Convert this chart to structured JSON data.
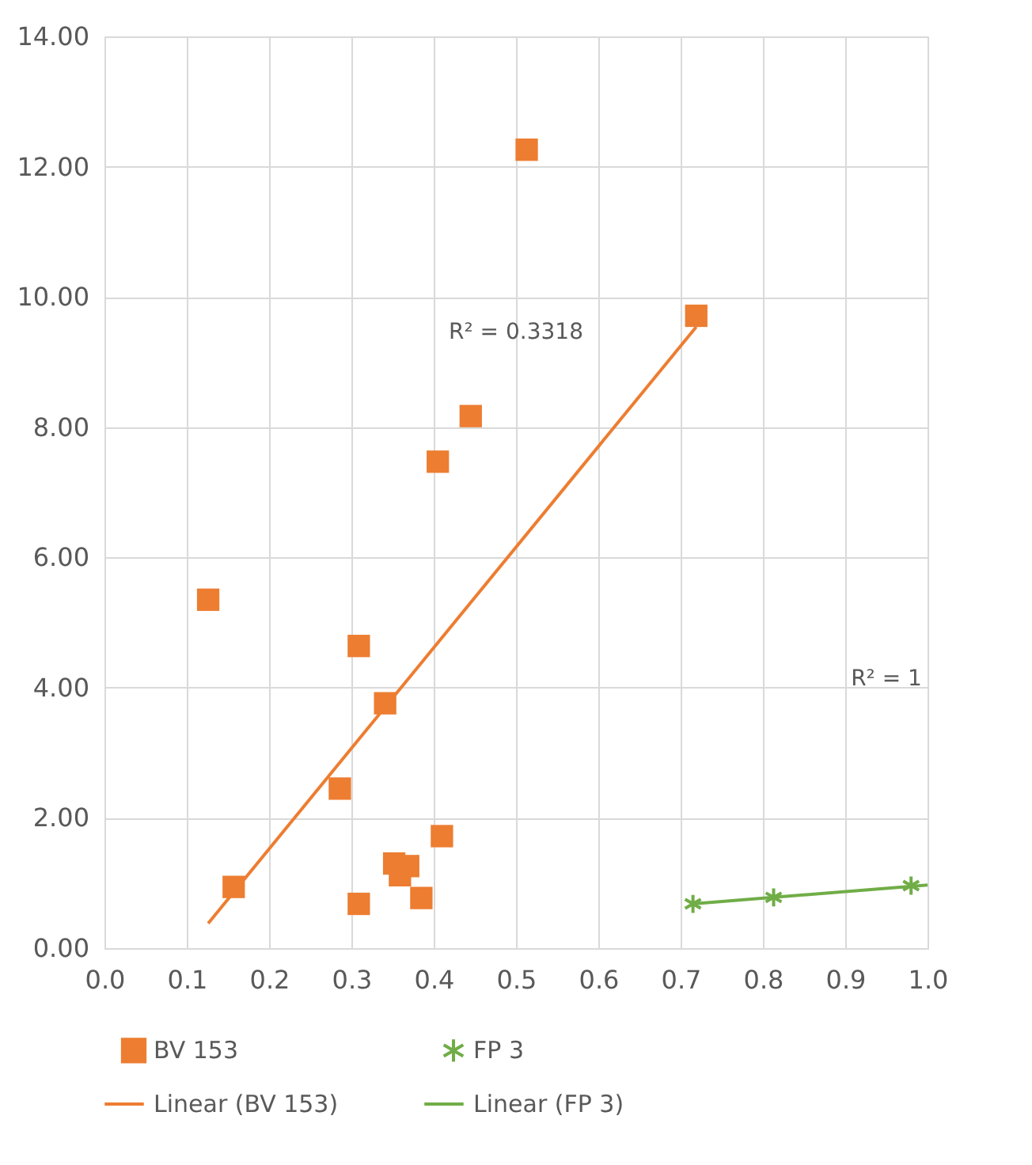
{
  "chart_data": {
    "type": "scatter",
    "series": [
      {
        "name": "BV 153",
        "marker": "square",
        "color": "#ed7d31",
        "x": [
          0.513,
          0.719,
          0.445,
          0.405,
          0.126,
          0.309,
          0.341,
          0.286,
          0.41,
          0.352,
          0.369,
          0.359,
          0.385,
          0.309,
          0.157
        ],
        "values": [
          12.26,
          9.71,
          8.17,
          7.47,
          5.35,
          4.64,
          3.76,
          2.45,
          1.72,
          1.3,
          1.26,
          1.12,
          0.77,
          0.68,
          0.94
        ]
      },
      {
        "name": "FP 3",
        "marker": "cross",
        "color": "#70ad47",
        "x": [
          0.715,
          0.813,
          0.98
        ],
        "values": [
          0.68,
          0.78,
          0.96
        ]
      },
      {
        "name": "Linear (BV 153)",
        "type": "line",
        "marker": "none",
        "line_style": "solid",
        "color": "#ed7d31",
        "x": [
          0.126,
          0.719
        ],
        "values": [
          0.38,
          9.54
        ]
      },
      {
        "name": "Linear (FP 3)",
        "type": "line",
        "marker": "none",
        "line_style": "solid",
        "color": "#70ad47",
        "x": [
          0.715,
          1.0
        ],
        "values": [
          0.68,
          0.97
        ]
      }
    ],
    "annotations": [
      "R² = 0.3318",
      "R² = 1"
    ],
    "xlim": [
      0,
      1
    ],
    "ylim": [
      0,
      14
    ],
    "xticks": [
      {
        "value": 0,
        "label": "0.0"
      },
      {
        "value": 0.1,
        "label": "0.1"
      },
      {
        "value": 0.2,
        "label": "0.2"
      },
      {
        "value": 0.3,
        "label": "0.3"
      },
      {
        "value": 0.4,
        "label": "0.4"
      },
      {
        "value": 0.5,
        "label": "0.5"
      },
      {
        "value": 0.6,
        "label": "0.6"
      },
      {
        "value": 0.7,
        "label": "0.7"
      },
      {
        "value": 0.8,
        "label": "0.8"
      },
      {
        "value": 0.9,
        "label": "0.9"
      },
      {
        "value": 1,
        "label": "1.0"
      }
    ],
    "yticks": [
      {
        "value": 0,
        "label": "0.00"
      },
      {
        "value": 2,
        "label": "2.00"
      },
      {
        "value": 4,
        "label": "4.00"
      },
      {
        "value": 6,
        "label": "6.00"
      },
      {
        "value": 8,
        "label": "8.00"
      },
      {
        "value": 10,
        "label": "10.00"
      },
      {
        "value": 12,
        "label": "12.00"
      },
      {
        "value": 14,
        "label": "14.00"
      }
    ],
    "grid": true,
    "legend": "bottom"
  }
}
